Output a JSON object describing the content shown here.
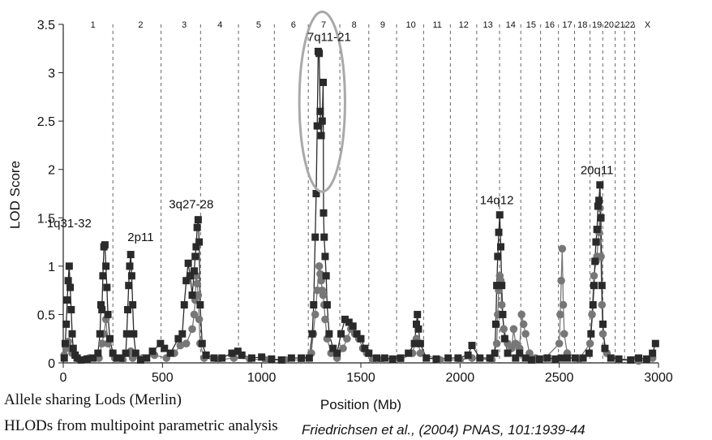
{
  "chart_data": {
    "type": "scatter",
    "xlabel": "Position (Mb)",
    "ylabel": "LOD Score",
    "xlim": [
      0,
      3000
    ],
    "ylim": [
      0,
      3.5
    ],
    "x_ticks": [
      0,
      500,
      1000,
      1500,
      2000,
      2500,
      3000
    ],
    "y_ticks": [
      0,
      0.5,
      1,
      1.5,
      2,
      2.5,
      3,
      3.5
    ],
    "y_tick_labels": [
      "0",
      "0.5",
      "1",
      "1.5",
      "2",
      "2.5",
      "3",
      "3.5"
    ],
    "chromosome_boundaries": [
      250,
      493,
      692,
      883,
      1064,
      1235,
      1394,
      1540,
      1680,
      1816,
      1951,
      2084,
      2199,
      2306,
      2406,
      2496,
      2577,
      2655,
      2719,
      2782,
      2829,
      2880
    ],
    "chromosome_labels": [
      {
        "label": "1",
        "x": 150
      },
      {
        "label": "2",
        "x": 390
      },
      {
        "label": "3",
        "x": 610
      },
      {
        "label": "4",
        "x": 790
      },
      {
        "label": "5",
        "x": 985
      },
      {
        "label": "6",
        "x": 1160
      },
      {
        "label": "7",
        "x": 1312
      },
      {
        "label": "8",
        "x": 1466
      },
      {
        "label": "9",
        "x": 1610
      },
      {
        "label": "10",
        "x": 1752
      },
      {
        "label": "11",
        "x": 1885
      },
      {
        "label": "12",
        "x": 2018
      },
      {
        "label": "13",
        "x": 2140
      },
      {
        "label": "14",
        "x": 2255
      },
      {
        "label": "15",
        "x": 2358
      },
      {
        "label": "16",
        "x": 2452
      },
      {
        "label": "17",
        "x": 2540
      },
      {
        "label": "18",
        "x": 2617
      },
      {
        "label": "19",
        "x": 2690
      },
      {
        "label": "20",
        "x": 2750
      },
      {
        "label": "21",
        "x": 2806
      },
      {
        "label": "22",
        "x": 2856
      },
      {
        "label": "X",
        "x": 2945
      }
    ],
    "annotations": [
      {
        "text": "1q31-32",
        "x": 30,
        "y": 1.4
      },
      {
        "text": "2p11",
        "x": 390,
        "y": 1.26
      },
      {
        "text": "3q27-28",
        "x": 645,
        "y": 1.6
      },
      {
        "text": "7q11-21",
        "x": 1340,
        "y": 3.33
      },
      {
        "text": "14q12",
        "x": 2185,
        "y": 1.64
      },
      {
        "text": "20q11",
        "x": 2690,
        "y": 1.95
      }
    ],
    "highlight_ellipse": {
      "cx": 1305,
      "cy": 2.7,
      "rx": 115,
      "ry": 0.93
    },
    "series": [
      {
        "marker": "square",
        "color": "#2a2a2a",
        "points": [
          [
            5,
            0.05
          ],
          [
            10,
            0.2
          ],
          [
            15,
            0.4
          ],
          [
            20,
            0.65
          ],
          [
            25,
            0.85
          ],
          [
            30,
            1.0
          ],
          [
            35,
            0.78
          ],
          [
            40,
            0.55
          ],
          [
            45,
            0.3
          ],
          [
            50,
            0.15
          ],
          [
            60,
            0.08
          ],
          [
            70,
            0.05
          ],
          [
            90,
            0.03
          ],
          [
            120,
            0.04
          ],
          [
            150,
            0.05
          ],
          [
            175,
            0.1
          ],
          [
            185,
            0.3
          ],
          [
            190,
            0.6
          ],
          [
            195,
            0.55
          ],
          [
            200,
            0.9
          ],
          [
            205,
            1.2
          ],
          [
            210,
            1.22
          ],
          [
            215,
            1.0
          ],
          [
            220,
            0.78
          ],
          [
            225,
            0.5
          ],
          [
            235,
            0.25
          ],
          [
            250,
            0.1
          ],
          [
            270,
            0.05
          ],
          [
            290,
            0.05
          ],
          [
            315,
            0.1
          ],
          [
            320,
            0.3
          ],
          [
            325,
            0.55
          ],
          [
            330,
            0.8
          ],
          [
            335,
            1.0
          ],
          [
            340,
            1.12
          ],
          [
            345,
            0.9
          ],
          [
            350,
            0.6
          ],
          [
            355,
            0.3
          ],
          [
            365,
            0.1
          ],
          [
            390,
            0.03
          ],
          [
            420,
            0.05
          ],
          [
            450,
            0.12
          ],
          [
            490,
            0.2
          ],
          [
            510,
            0.15
          ],
          [
            540,
            0.1
          ],
          [
            580,
            0.25
          ],
          [
            600,
            0.3
          ],
          [
            610,
            0.6
          ],
          [
            620,
            0.85
          ],
          [
            630,
            1.03
          ],
          [
            640,
            0.9
          ],
          [
            650,
            0.7
          ],
          [
            660,
            0.95
          ],
          [
            665,
            1.1
          ],
          [
            670,
            1.2
          ],
          [
            675,
            1.4
          ],
          [
            680,
            1.48
          ],
          [
            685,
            1.25
          ],
          [
            690,
            0.6
          ],
          [
            700,
            0.2
          ],
          [
            720,
            0.08
          ],
          [
            760,
            0.05
          ],
          [
            800,
            0.05
          ],
          [
            850,
            0.1
          ],
          [
            880,
            0.12
          ],
          [
            900,
            0.08
          ],
          [
            950,
            0.05
          ],
          [
            1000,
            0.06
          ],
          [
            1050,
            0.04
          ],
          [
            1100,
            0.03
          ],
          [
            1150,
            0.05
          ],
          [
            1200,
            0.05
          ],
          [
            1240,
            0.05
          ],
          [
            1255,
            0.3
          ],
          [
            1262,
            0.6
          ],
          [
            1270,
            1.3
          ],
          [
            1275,
            1.75
          ],
          [
            1280,
            2.45
          ],
          [
            1285,
            3.22
          ],
          [
            1290,
            3.2
          ],
          [
            1295,
            2.6
          ],
          [
            1300,
            2.35
          ],
          [
            1305,
            2.5
          ],
          [
            1310,
            2.9
          ],
          [
            1312,
            1.55
          ],
          [
            1315,
            1.3
          ],
          [
            1320,
            1.1
          ],
          [
            1325,
            0.9
          ],
          [
            1330,
            0.6
          ],
          [
            1340,
            0.3
          ],
          [
            1360,
            0.15
          ],
          [
            1380,
            0.1
          ],
          [
            1400,
            0.3
          ],
          [
            1420,
            0.45
          ],
          [
            1440,
            0.42
          ],
          [
            1460,
            0.38
          ],
          [
            1480,
            0.3
          ],
          [
            1500,
            0.25
          ],
          [
            1520,
            0.15
          ],
          [
            1540,
            0.1
          ],
          [
            1580,
            0.05
          ],
          [
            1620,
            0.05
          ],
          [
            1660,
            0.04
          ],
          [
            1700,
            0.05
          ],
          [
            1740,
            0.1
          ],
          [
            1770,
            0.2
          ],
          [
            1780,
            0.4
          ],
          [
            1785,
            0.5
          ],
          [
            1790,
            0.35
          ],
          [
            1800,
            0.2
          ],
          [
            1830,
            0.05
          ],
          [
            1880,
            0.04
          ],
          [
            1940,
            0.05
          ],
          [
            1990,
            0.05
          ],
          [
            2040,
            0.08
          ],
          [
            2060,
            0.18
          ],
          [
            2100,
            0.05
          ],
          [
            2150,
            0.05
          ],
          [
            2175,
            0.1
          ],
          [
            2180,
            0.4
          ],
          [
            2185,
            0.8
          ],
          [
            2190,
            1.1
          ],
          [
            2195,
            1.35
          ],
          [
            2200,
            1.53
          ],
          [
            2205,
            1.2
          ],
          [
            2210,
            0.8
          ],
          [
            2215,
            0.5
          ],
          [
            2225,
            0.25
          ],
          [
            2240,
            0.1
          ],
          [
            2280,
            0.05
          ],
          [
            2300,
            0.1
          ],
          [
            2330,
            0.05
          ],
          [
            2360,
            0.03
          ],
          [
            2400,
            0.04
          ],
          [
            2440,
            0.05
          ],
          [
            2480,
            0.04
          ],
          [
            2510,
            0.05
          ],
          [
            2540,
            0.05
          ],
          [
            2580,
            0.05
          ],
          [
            2620,
            0.05
          ],
          [
            2650,
            0.1
          ],
          [
            2660,
            0.3
          ],
          [
            2670,
            0.6
          ],
          [
            2675,
            0.8
          ],
          [
            2680,
            1.05
          ],
          [
            2685,
            1.25
          ],
          [
            2690,
            1.38
          ],
          [
            2695,
            1.62
          ],
          [
            2700,
            1.68
          ],
          [
            2705,
            1.84
          ],
          [
            2710,
            1.5
          ],
          [
            2715,
            0.8
          ],
          [
            2720,
            0.4
          ],
          [
            2730,
            0.15
          ],
          [
            2760,
            0.05
          ],
          [
            2800,
            0.04
          ],
          [
            2860,
            0.03
          ],
          [
            2900,
            0.05
          ],
          [
            2940,
            0.04
          ],
          [
            2970,
            0.1
          ],
          [
            2985,
            0.2
          ]
        ]
      },
      {
        "marker": "circle",
        "color": "#777777",
        "points": [
          [
            5,
            0.08
          ],
          [
            15,
            0.15
          ],
          [
            25,
            0.22
          ],
          [
            35,
            0.15
          ],
          [
            45,
            0.1
          ],
          [
            80,
            0.03
          ],
          [
            130,
            0.05
          ],
          [
            180,
            0.05
          ],
          [
            195,
            0.2
          ],
          [
            205,
            0.3
          ],
          [
            215,
            0.45
          ],
          [
            225,
            0.2
          ],
          [
            260,
            0.05
          ],
          [
            300,
            0.03
          ],
          [
            330,
            0.1
          ],
          [
            340,
            0.12
          ],
          [
            350,
            0.05
          ],
          [
            400,
            0.05
          ],
          [
            460,
            0.08
          ],
          [
            520,
            0.05
          ],
          [
            560,
            0.1
          ],
          [
            590,
            0.18
          ],
          [
            620,
            0.2
          ],
          [
            650,
            0.35
          ],
          [
            660,
            0.5
          ],
          [
            665,
            0.65
          ],
          [
            670,
            0.9
          ],
          [
            675,
            0.82
          ],
          [
            680,
            0.7
          ],
          [
            685,
            0.45
          ],
          [
            690,
            0.2
          ],
          [
            710,
            0.05
          ],
          [
            780,
            0.03
          ],
          [
            860,
            0.05
          ],
          [
            940,
            0.04
          ],
          [
            1020,
            0.03
          ],
          [
            1120,
            0.03
          ],
          [
            1200,
            0.03
          ],
          [
            1250,
            0.1
          ],
          [
            1260,
            0.3
          ],
          [
            1270,
            0.5
          ],
          [
            1280,
            0.75
          ],
          [
            1290,
            1.0
          ],
          [
            1295,
            0.92
          ],
          [
            1300,
            0.85
          ],
          [
            1305,
            0.75
          ],
          [
            1310,
            0.7
          ],
          [
            1315,
            0.6
          ],
          [
            1320,
            0.45
          ],
          [
            1330,
            0.25
          ],
          [
            1350,
            0.1
          ],
          [
            1380,
            0.05
          ],
          [
            1410,
            0.15
          ],
          [
            1430,
            0.25
          ],
          [
            1450,
            0.35
          ],
          [
            1470,
            0.3
          ],
          [
            1490,
            0.25
          ],
          [
            1510,
            0.15
          ],
          [
            1530,
            0.1
          ],
          [
            1560,
            0.03
          ],
          [
            1600,
            0.03
          ],
          [
            1700,
            0.03
          ],
          [
            1760,
            0.1
          ],
          [
            1780,
            0.25
          ],
          [
            1790,
            0.2
          ],
          [
            1800,
            0.1
          ],
          [
            1900,
            0.03
          ],
          [
            2000,
            0.03
          ],
          [
            2060,
            0.05
          ],
          [
            2160,
            0.03
          ],
          [
            2185,
            0.2
          ],
          [
            2190,
            0.5
          ],
          [
            2195,
            0.75
          ],
          [
            2200,
            0.9
          ],
          [
            2205,
            0.85
          ],
          [
            2210,
            0.6
          ],
          [
            2220,
            0.35
          ],
          [
            2240,
            0.2
          ],
          [
            2260,
            0.15
          ],
          [
            2270,
            0.35
          ],
          [
            2280,
            0.2
          ],
          [
            2300,
            0.15
          ],
          [
            2310,
            0.5
          ],
          [
            2320,
            0.4
          ],
          [
            2330,
            0.3
          ],
          [
            2350,
            0.1
          ],
          [
            2380,
            0.05
          ],
          [
            2430,
            0.05
          ],
          [
            2500,
            0.2
          ],
          [
            2505,
            0.5
          ],
          [
            2510,
            0.85
          ],
          [
            2515,
            1.18
          ],
          [
            2520,
            0.6
          ],
          [
            2525,
            0.3
          ],
          [
            2540,
            0.1
          ],
          [
            2600,
            0.04
          ],
          [
            2655,
            0.2
          ],
          [
            2665,
            0.5
          ],
          [
            2675,
            0.9
          ],
          [
            2685,
            1.05
          ],
          [
            2690,
            1.1
          ],
          [
            2695,
            1.25
          ],
          [
            2700,
            1.35
          ],
          [
            2705,
            1.6
          ],
          [
            2710,
            1.1
          ],
          [
            2715,
            0.6
          ],
          [
            2720,
            0.3
          ],
          [
            2740,
            0.1
          ],
          [
            2800,
            0.03
          ],
          [
            2900,
            0.02
          ],
          [
            2970,
            0.05
          ]
        ]
      }
    ]
  },
  "captions": {
    "line1": "Allele sharing Lods (Merlin)",
    "line2": "HLODs from multipoint parametric analysis",
    "citation": "Friedrichsen et al., (2004) PNAS, 101:1939-44"
  }
}
